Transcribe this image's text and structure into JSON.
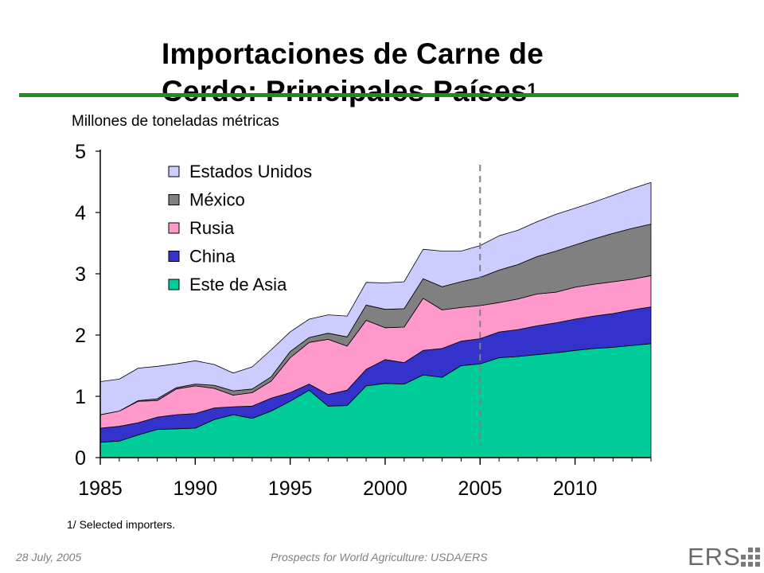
{
  "title_line1": "Importaciones de Carne de",
  "title_line2": "Cerdo: Principales Países",
  "title_footnote_mark": "1",
  "footnote": "1/ Selected importers.",
  "footer": {
    "date": "28 July, 2005",
    "source": "Prospects for World Agriculture:  USDA/ERS"
  },
  "logo": {
    "text": "ERS"
  },
  "colors": {
    "rule": "#1e8f1e"
  },
  "chart_data": {
    "type": "area",
    "stacked": true,
    "ylabel": "Millones de toneladas métricas",
    "ylim": [
      0,
      5
    ],
    "xlim": [
      1985,
      2014
    ],
    "yticks": [
      "0",
      "1",
      "2",
      "3",
      "4",
      "5"
    ],
    "xticks": [
      "1985",
      "1990",
      "1995",
      "2000",
      "2005",
      "2010"
    ],
    "projection_start": 2005,
    "legend_position": "top-left",
    "x": [
      1985,
      1986,
      1987,
      1988,
      1989,
      1990,
      1991,
      1992,
      1993,
      1994,
      1995,
      1996,
      1997,
      1998,
      1999,
      2000,
      2001,
      2002,
      2003,
      2004,
      2005,
      2006,
      2007,
      2008,
      2009,
      2010,
      2011,
      2012,
      2013,
      2014
    ],
    "series": [
      {
        "name": "Este de Asia",
        "color": "#00cc99",
        "values": [
          0.25,
          0.27,
          0.37,
          0.46,
          0.47,
          0.48,
          0.62,
          0.7,
          0.64,
          0.76,
          0.92,
          1.1,
          0.84,
          0.85,
          1.17,
          1.21,
          1.2,
          1.35,
          1.31,
          1.5,
          1.53,
          1.63,
          1.65,
          1.68,
          1.71,
          1.75,
          1.78,
          1.8,
          1.83,
          1.86
        ]
      },
      {
        "name": "China",
        "color": "#3333cc",
        "values": [
          0.23,
          0.24,
          0.2,
          0.2,
          0.23,
          0.24,
          0.19,
          0.13,
          0.2,
          0.21,
          0.14,
          0.1,
          0.19,
          0.25,
          0.27,
          0.39,
          0.35,
          0.4,
          0.47,
          0.4,
          0.41,
          0.42,
          0.44,
          0.47,
          0.49,
          0.51,
          0.53,
          0.55,
          0.58,
          0.6
        ]
      },
      {
        "name": "Rusia",
        "color": "#ff99cc",
        "values": [
          0.22,
          0.25,
          0.35,
          0.27,
          0.42,
          0.45,
          0.32,
          0.19,
          0.22,
          0.28,
          0.57,
          0.68,
          0.9,
          0.72,
          0.8,
          0.52,
          0.58,
          0.85,
          0.63,
          0.55,
          0.54,
          0.48,
          0.5,
          0.52,
          0.5,
          0.52,
          0.52,
          0.52,
          0.5,
          0.51
        ]
      },
      {
        "name": "México",
        "color": "#808080",
        "values": [
          0,
          0,
          0.01,
          0.03,
          0.02,
          0.03,
          0.05,
          0.07,
          0.06,
          0.07,
          0.1,
          0.08,
          0.1,
          0.15,
          0.25,
          0.3,
          0.3,
          0.32,
          0.38,
          0.42,
          0.46,
          0.53,
          0.56,
          0.61,
          0.67,
          0.69,
          0.74,
          0.79,
          0.83,
          0.84
        ]
      },
      {
        "name": "Estados Unidos",
        "color": "#ccccff",
        "values": [
          0.54,
          0.52,
          0.53,
          0.53,
          0.39,
          0.38,
          0.34,
          0.29,
          0.36,
          0.44,
          0.32,
          0.3,
          0.3,
          0.34,
          0.37,
          0.43,
          0.44,
          0.48,
          0.58,
          0.5,
          0.52,
          0.56,
          0.56,
          0.57,
          0.6,
          0.6,
          0.6,
          0.62,
          0.65,
          0.68
        ]
      }
    ]
  }
}
